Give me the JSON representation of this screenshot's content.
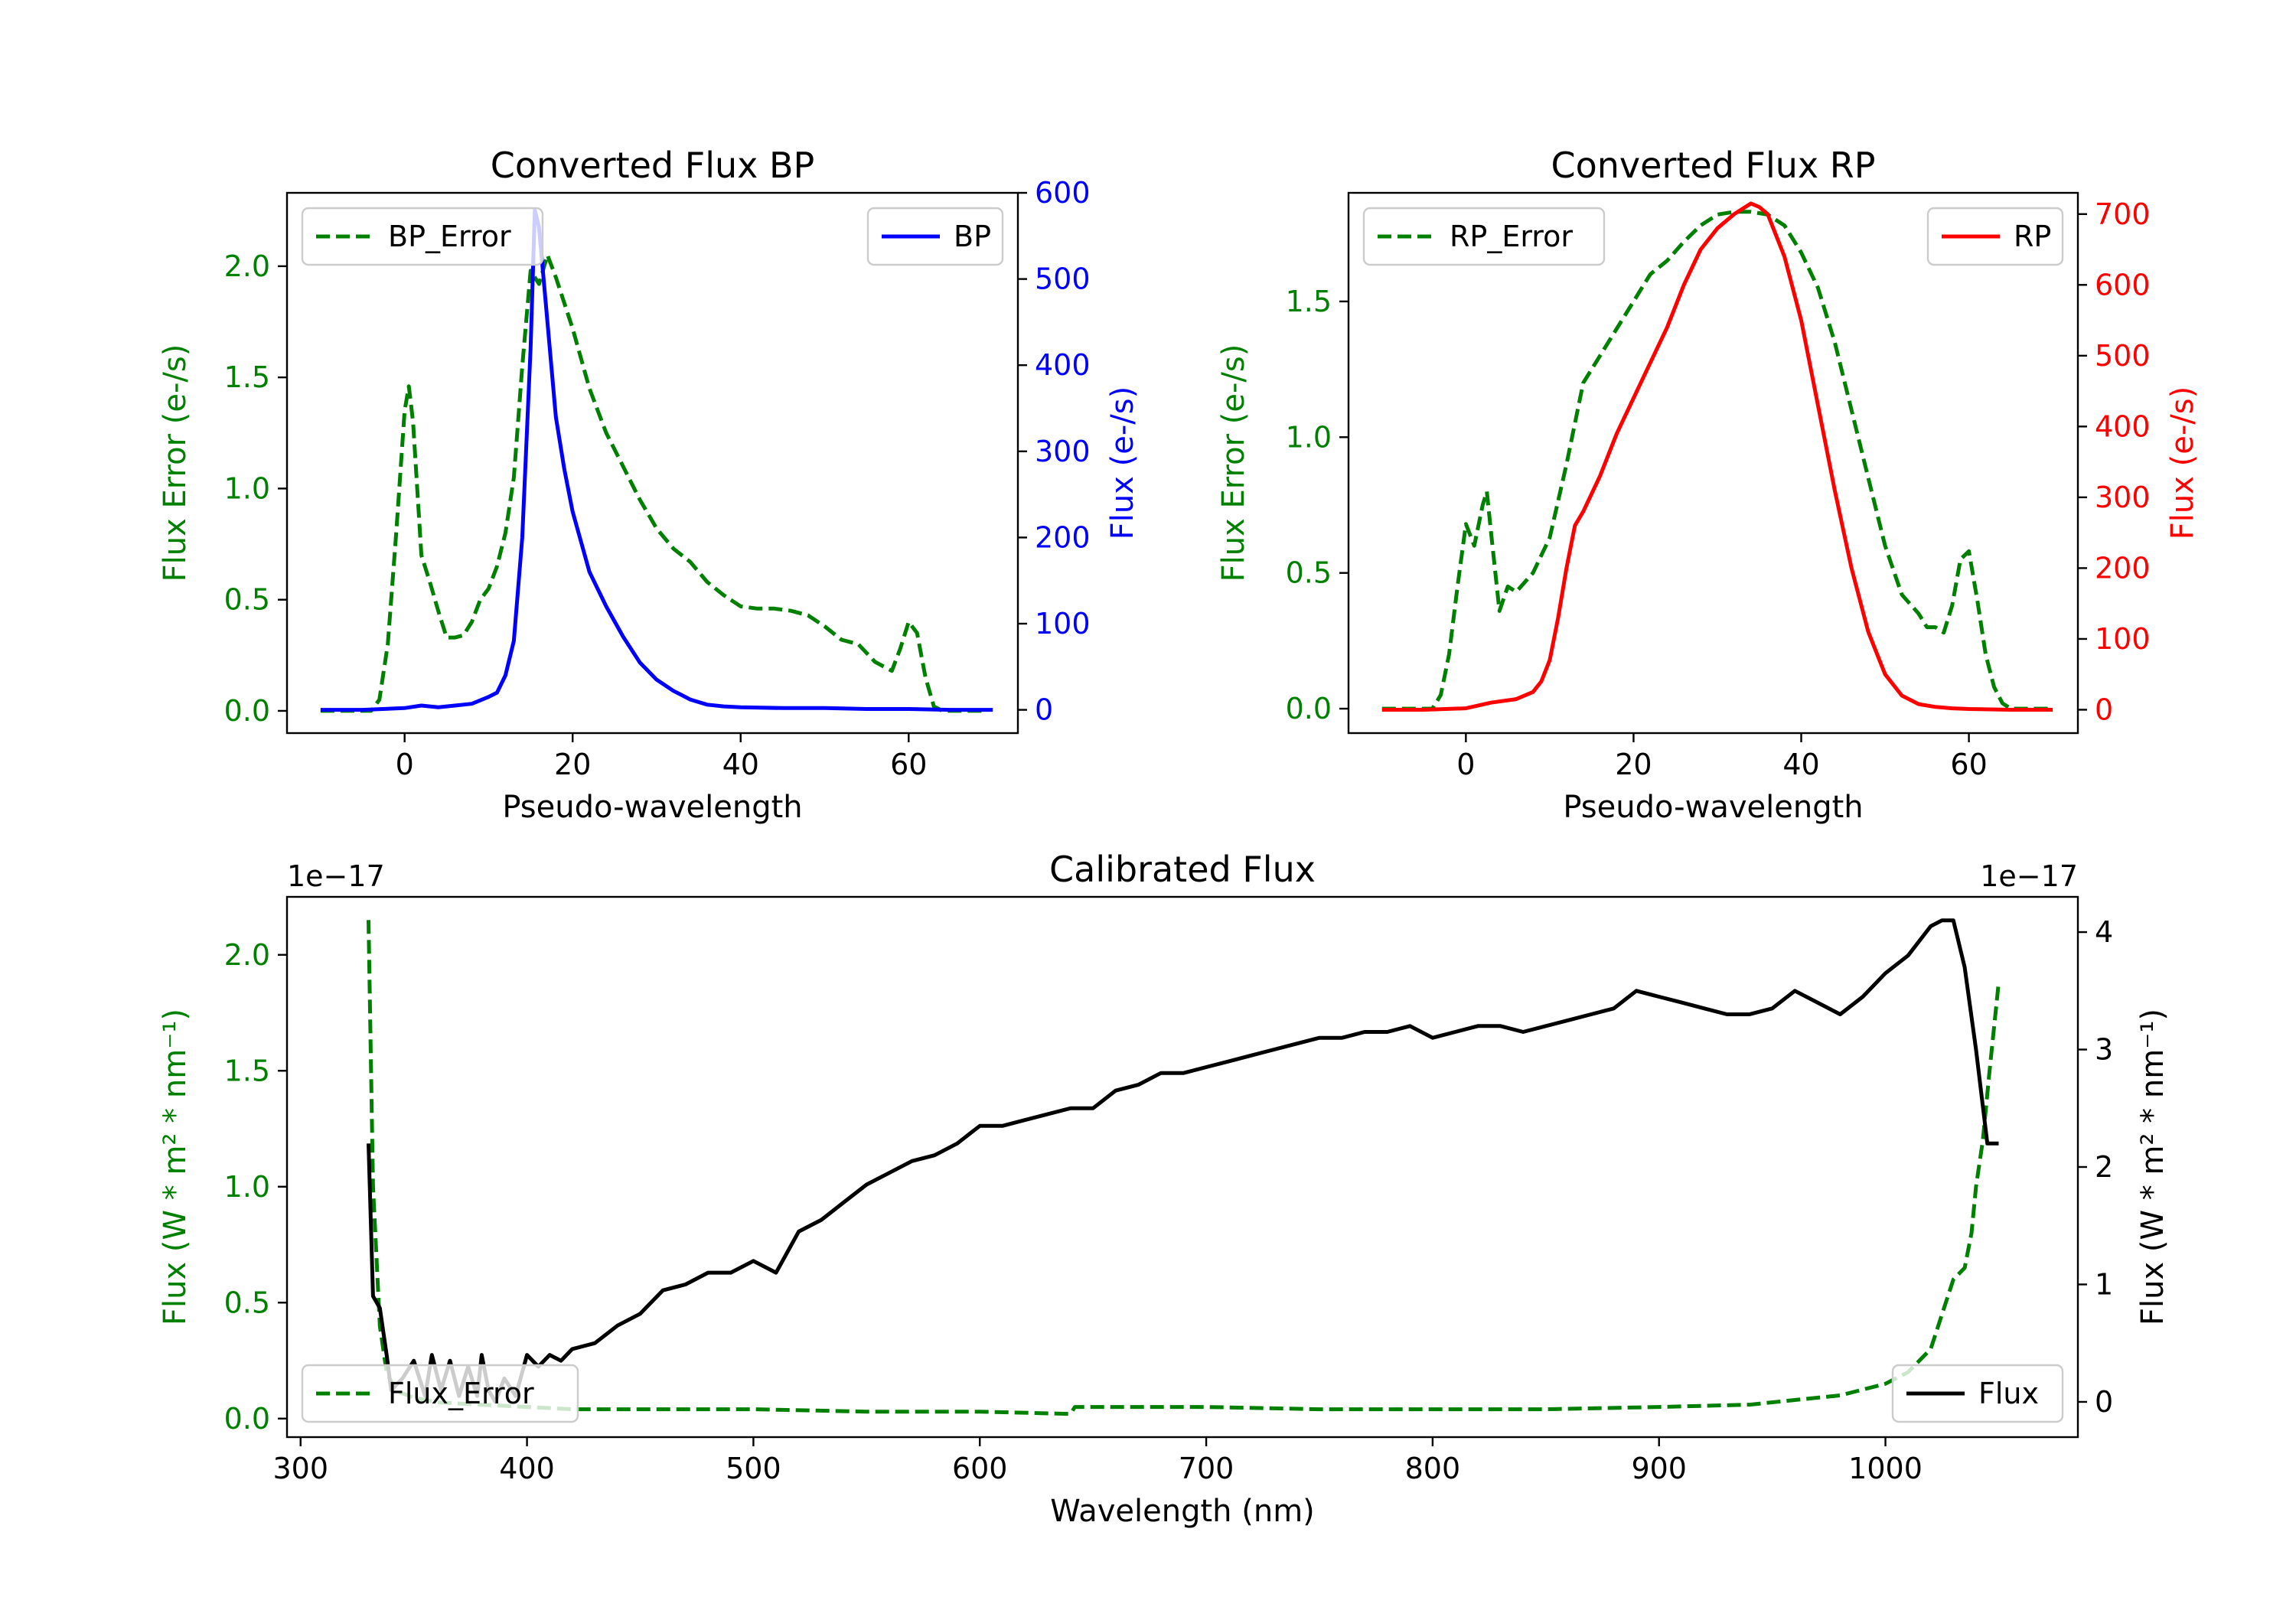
{
  "colors": {
    "green": "#008000",
    "blue": "#0000ff",
    "red": "#ff0000",
    "black": "#000000"
  },
  "chart_data": [
    {
      "type": "line",
      "title": "Converted Flux BP",
      "xlabel": "Pseudo-wavelength",
      "ylabel_left": "Flux Error (e-/s)",
      "ylabel_right": "Flux (e-/s)",
      "xlim": [
        -14,
        73
      ],
      "ylim_left": [
        -0.1,
        2.33
      ],
      "ylim_right": [
        -27,
        600
      ],
      "xticks": [
        0,
        20,
        40,
        60
      ],
      "yticks_left": [
        0.0,
        0.5,
        1.0,
        1.5,
        2.0
      ],
      "yticks_right": [
        0,
        100,
        200,
        300,
        400,
        500,
        600
      ],
      "ytick_labels_left": [
        "0.0",
        "0.5",
        "1.0",
        "1.5",
        "2.0"
      ],
      "legend_left_position": "upper-left",
      "legend_right_position": "upper-right",
      "series": [
        {
          "name": "BP_Error",
          "axis": "left",
          "color": "#008000",
          "style": "dashed",
          "x": [
            -10,
            -4,
            -3,
            -2,
            -1,
            0,
            0.5,
            1,
            2,
            3,
            4,
            5,
            6,
            7,
            8,
            9,
            10,
            11,
            12,
            13,
            14,
            15,
            16,
            17,
            18,
            20,
            22,
            24,
            26,
            28,
            30,
            32,
            34,
            36,
            38,
            40,
            42,
            44,
            46,
            48,
            50,
            52,
            54,
            56,
            58,
            59,
            60,
            61,
            62,
            63,
            64,
            69
          ],
          "y": [
            0,
            0,
            0.05,
            0.3,
            0.8,
            1.35,
            1.46,
            1.3,
            0.7,
            0.58,
            0.45,
            0.33,
            0.33,
            0.34,
            0.4,
            0.5,
            0.55,
            0.65,
            0.8,
            1.05,
            1.55,
            1.98,
            1.92,
            2.05,
            1.95,
            1.72,
            1.45,
            1.25,
            1.1,
            0.95,
            0.82,
            0.73,
            0.67,
            0.58,
            0.52,
            0.47,
            0.46,
            0.46,
            0.45,
            0.43,
            0.38,
            0.32,
            0.3,
            0.22,
            0.18,
            0.28,
            0.4,
            0.35,
            0.15,
            0.02,
            0,
            0
          ]
        },
        {
          "name": "BP",
          "axis": "right",
          "color": "#0000ff",
          "style": "solid",
          "x": [
            -10,
            -5,
            0,
            2,
            4,
            6,
            8,
            10,
            11,
            12,
            13,
            14,
            15,
            15.5,
            16,
            17,
            18,
            19,
            20,
            22,
            24,
            26,
            28,
            30,
            32,
            34,
            36,
            38,
            40,
            45,
            50,
            55,
            60,
            65,
            70
          ],
          "y": [
            0,
            0,
            2,
            5,
            3,
            5,
            7,
            15,
            20,
            40,
            80,
            200,
            420,
            580,
            560,
            450,
            340,
            280,
            230,
            160,
            120,
            85,
            55,
            35,
            22,
            12,
            6,
            4,
            3,
            2,
            2,
            1,
            1,
            0,
            0
          ]
        }
      ]
    },
    {
      "type": "line",
      "title": "Converted Flux RP",
      "xlabel": "Pseudo-wavelength",
      "ylabel_left": "Flux Error (e-/s)",
      "ylabel_right": "Flux (e-/s)",
      "xlim": [
        -14,
        73
      ],
      "ylim_left": [
        -0.09,
        1.9
      ],
      "ylim_right": [
        -33,
        730
      ],
      "xticks": [
        0,
        20,
        40,
        60
      ],
      "yticks_left": [
        0.0,
        0.5,
        1.0,
        1.5
      ],
      "yticks_right": [
        0,
        100,
        200,
        300,
        400,
        500,
        600,
        700
      ],
      "ytick_labels_left": [
        "0.0",
        "0.5",
        "1.0",
        "1.5"
      ],
      "legend_left_position": "upper-left",
      "legend_right_position": "upper-right",
      "series": [
        {
          "name": "RP_Error",
          "axis": "left",
          "color": "#008000",
          "style": "dashed",
          "x": [
            -10,
            -4,
            -3,
            -2,
            -1,
            0,
            1,
            2,
            2.5,
            3,
            4,
            5,
            6,
            8,
            10,
            12,
            14,
            16,
            18,
            20,
            22,
            24,
            26,
            28,
            30,
            32,
            34,
            36,
            38,
            40,
            42,
            44,
            46,
            48,
            50,
            52,
            54,
            55,
            56,
            57,
            58,
            59,
            60,
            61,
            62,
            63,
            64,
            65,
            70
          ],
          "y": [
            0,
            0,
            0.05,
            0.2,
            0.45,
            0.68,
            0.6,
            0.75,
            0.8,
            0.65,
            0.36,
            0.45,
            0.43,
            0.5,
            0.63,
            0.9,
            1.2,
            1.3,
            1.4,
            1.5,
            1.6,
            1.65,
            1.72,
            1.78,
            1.82,
            1.83,
            1.83,
            1.82,
            1.78,
            1.68,
            1.55,
            1.35,
            1.1,
            0.85,
            0.6,
            0.42,
            0.35,
            0.3,
            0.3,
            0.28,
            0.38,
            0.55,
            0.58,
            0.4,
            0.2,
            0.08,
            0.02,
            0,
            0
          ]
        },
        {
          "name": "RP",
          "axis": "right",
          "color": "#ff0000",
          "style": "solid",
          "x": [
            -10,
            -5,
            0,
            3,
            6,
            8,
            9,
            10,
            11,
            12,
            13,
            14,
            16,
            18,
            20,
            22,
            24,
            26,
            28,
            30,
            32,
            34,
            35,
            36,
            38,
            40,
            42,
            44,
            46,
            48,
            50,
            52,
            54,
            56,
            58,
            60,
            65,
            70
          ],
          "y": [
            0,
            0,
            2,
            10,
            15,
            25,
            40,
            70,
            130,
            200,
            260,
            280,
            330,
            390,
            440,
            490,
            540,
            600,
            650,
            680,
            700,
            715,
            710,
            700,
            640,
            550,
            430,
            310,
            200,
            110,
            50,
            20,
            8,
            4,
            2,
            1,
            0,
            0
          ]
        }
      ]
    },
    {
      "type": "line",
      "title": "Calibrated Flux",
      "xlabel": "Wavelength (nm)",
      "ylabel_left": "Flux (W * m² * nm⁻¹)",
      "ylabel_right": "Flux (W * m² * nm⁻¹)",
      "offset_left": "1e−17",
      "offset_right": "1e−17",
      "xlim": [
        294,
        1085
      ],
      "ylim_left": [
        -0.08,
        2.25
      ],
      "ylim_right": [
        -0.3,
        4.3
      ],
      "xticks": [
        300,
        400,
        500,
        600,
        700,
        800,
        900,
        1000
      ],
      "yticks_left": [
        0.0,
        0.5,
        1.0,
        1.5,
        2.0
      ],
      "yticks_right": [
        0,
        1,
        2,
        3,
        4
      ],
      "ytick_labels_left": [
        "0.0",
        "0.5",
        "1.0",
        "1.5",
        "2.0"
      ],
      "legend_left_position": "lower-left",
      "legend_right_position": "lower-right",
      "series": [
        {
          "name": "Flux_Error",
          "axis": "left",
          "color": "#008000",
          "style": "dashed",
          "x": [
            330,
            332,
            335,
            338,
            342,
            350,
            360,
            380,
            400,
            420,
            450,
            500,
            550,
            600,
            640,
            642,
            660,
            700,
            750,
            800,
            850,
            900,
            940,
            960,
            980,
            1000,
            1010,
            1020,
            1025,
            1030,
            1035,
            1038,
            1040,
            1043,
            1046,
            1050
          ],
          "y": [
            2.15,
            1.0,
            0.4,
            0.2,
            0.12,
            0.09,
            0.07,
            0.06,
            0.05,
            0.04,
            0.04,
            0.04,
            0.03,
            0.03,
            0.02,
            0.05,
            0.05,
            0.05,
            0.04,
            0.04,
            0.04,
            0.05,
            0.06,
            0.08,
            0.1,
            0.15,
            0.2,
            0.3,
            0.45,
            0.6,
            0.65,
            0.8,
            1.0,
            1.2,
            1.5,
            1.88
          ]
        },
        {
          "name": "Flux",
          "axis": "right",
          "color": "#000000",
          "style": "solid",
          "x": [
            330,
            332,
            335,
            338,
            340,
            345,
            350,
            355,
            358,
            362,
            366,
            370,
            374,
            378,
            380,
            383,
            386,
            390,
            395,
            400,
            405,
            410,
            415,
            420,
            430,
            440,
            450,
            460,
            470,
            480,
            490,
            500,
            510,
            520,
            530,
            540,
            550,
            560,
            570,
            580,
            590,
            600,
            610,
            620,
            630,
            640,
            650,
            660,
            670,
            680,
            690,
            700,
            710,
            720,
            730,
            740,
            750,
            760,
            770,
            780,
            790,
            800,
            810,
            820,
            830,
            840,
            850,
            860,
            870,
            880,
            890,
            900,
            910,
            920,
            930,
            940,
            950,
            960,
            970,
            980,
            990,
            1000,
            1010,
            1020,
            1025,
            1030,
            1035,
            1040,
            1045,
            1050
          ],
          "y": [
            2.2,
            0.9,
            0.8,
            0.4,
            0.1,
            0.2,
            0.35,
            0.05,
            0.4,
            0.1,
            0.35,
            0.05,
            0.3,
            0.05,
            0.4,
            0.1,
            0.0,
            0.2,
            0.05,
            0.4,
            0.3,
            0.4,
            0.35,
            0.45,
            0.5,
            0.65,
            0.75,
            0.95,
            1.0,
            1.1,
            1.1,
            1.2,
            1.1,
            1.45,
            1.55,
            1.7,
            1.85,
            1.95,
            2.05,
            2.1,
            2.2,
            2.35,
            2.35,
            2.4,
            2.45,
            2.5,
            2.5,
            2.65,
            2.7,
            2.8,
            2.8,
            2.85,
            2.9,
            2.95,
            3.0,
            3.05,
            3.1,
            3.1,
            3.15,
            3.15,
            3.2,
            3.1,
            3.15,
            3.2,
            3.2,
            3.15,
            3.2,
            3.25,
            3.3,
            3.35,
            3.5,
            3.45,
            3.4,
            3.35,
            3.3,
            3.3,
            3.35,
            3.5,
            3.4,
            3.3,
            3.45,
            3.65,
            3.8,
            4.05,
            4.1,
            4.1,
            3.7,
            3.0,
            2.2,
            2.2
          ]
        }
      ]
    }
  ]
}
